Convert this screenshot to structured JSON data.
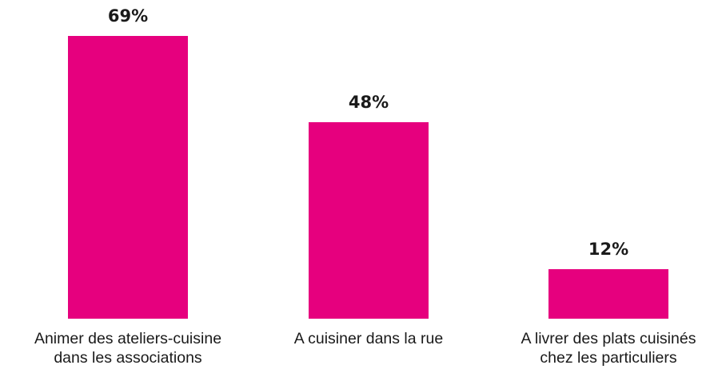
{
  "chart_data": {
    "type": "bar",
    "categories": [
      [
        "Animer des ateliers-cuisine",
        "dans les associations"
      ],
      [
        "A cuisiner dans la rue"
      ],
      [
        "A livrer des plats cuisinés",
        "chez les particuliers"
      ]
    ],
    "values": [
      69,
      48,
      12
    ],
    "value_labels": [
      "69%",
      "48%",
      "12%"
    ],
    "ylim": [
      0,
      69
    ],
    "grid": false,
    "legend": "none",
    "bar_color": "#e6007e"
  }
}
